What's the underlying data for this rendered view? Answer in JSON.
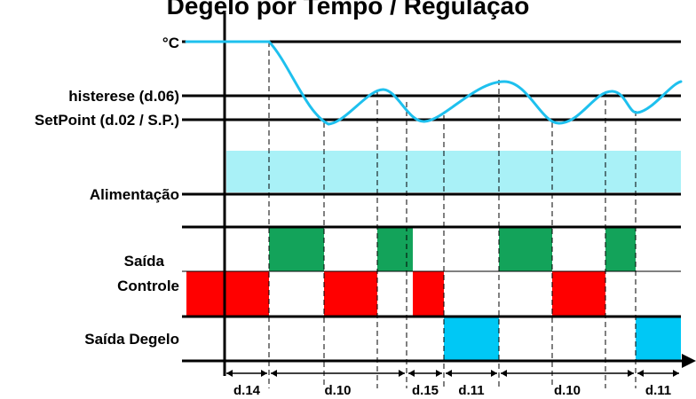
{
  "title": "Degelo por Tempo / Regulação",
  "labels": {
    "temp_unit": "°C",
    "hysteresis": "histerese (d.06)",
    "setpoint": "SetPoint (d.02 / S.P.)",
    "power": "Alimentação",
    "control_output_line1": "Saída",
    "control_output_line2": "Controle",
    "defrost_output": "Saída Degelo"
  },
  "colors": {
    "temperature_curve": "#1ec0ee",
    "power_band": "#a9f1f7",
    "relay_on": "#13a35a",
    "relay_off": "#ff0000",
    "defrost_on": "#00c8f5",
    "lines": "#000000"
  },
  "timing": {
    "control_output": [
      {
        "from": "power_on",
        "to": "d.14",
        "state": "off"
      },
      {
        "from": "d.14",
        "to": "setpoint",
        "state": "on"
      },
      {
        "from": "setpoint",
        "to": "hysteresis",
        "state": "off"
      },
      {
        "from": "hysteresis",
        "to": "d.15",
        "state": "on"
      },
      {
        "from": "d.15",
        "to": "defrost",
        "state": "off"
      },
      {
        "from": "defrost_end",
        "to": "hysteresis",
        "state": "on"
      },
      {
        "from": "setpoint",
        "to": "hysteresis",
        "state": "off"
      },
      {
        "from": "hysteresis",
        "to": "defrost",
        "state": "on"
      }
    ],
    "intervals": [
      "d.14",
      "d.10",
      "d.15",
      "d.11",
      "d.10",
      "d.11"
    ]
  }
}
